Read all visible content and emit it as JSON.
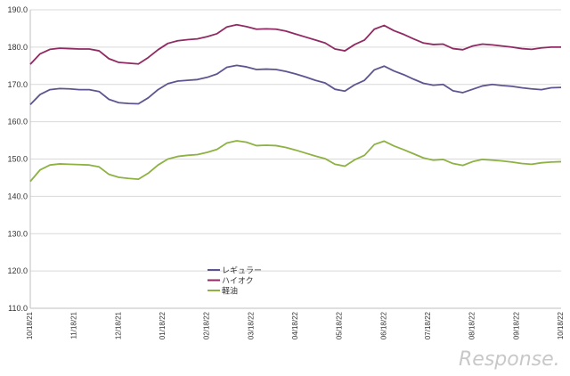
{
  "chart_data": {
    "type": "line",
    "title": "",
    "xlabel": "",
    "ylabel": "",
    "ylim": [
      110,
      190
    ],
    "yticks": [
      "110.0",
      "120.0",
      "130.0",
      "140.0",
      "150.0",
      "160.0",
      "170.0",
      "180.0",
      "190.0"
    ],
    "x_tick_labels": [
      "10/18/21",
      "11/18/21",
      "12/18/21",
      "01/18/22",
      "02/18/22",
      "03/18/22",
      "04/18/22",
      "05/18/22",
      "06/18/22",
      "07/18/22",
      "08/18/22",
      "09/18/22",
      "10/18/22"
    ],
    "grid": true,
    "legend_position": "center-left",
    "series": [
      {
        "name": "レギュラー",
        "color": "#5e5590",
        "values": [
          164.6,
          167.3,
          168.6,
          168.9,
          168.8,
          168.6,
          168.6,
          168.1,
          166.0,
          165.1,
          164.9,
          164.8,
          166.4,
          168.6,
          170.2,
          170.9,
          171.1,
          171.3,
          171.9,
          172.8,
          174.6,
          175.1,
          174.7,
          174.0,
          174.1,
          174.0,
          173.5,
          172.8,
          172.0,
          171.1,
          170.4,
          168.7,
          168.2,
          169.9,
          171.1,
          173.9,
          174.9,
          173.6,
          172.6,
          171.4,
          170.3,
          169.8,
          170.0,
          168.3,
          167.8,
          168.7,
          169.6,
          170.0,
          169.7,
          169.5,
          169.1,
          168.8,
          168.6,
          169.1,
          169.2
        ]
      },
      {
        "name": "ハイオク",
        "color": "#8f2a62",
        "values": [
          175.4,
          178.2,
          179.4,
          179.7,
          179.6,
          179.5,
          179.5,
          179.0,
          176.9,
          175.9,
          175.7,
          175.5,
          177.2,
          179.3,
          181.0,
          181.7,
          182.0,
          182.2,
          182.8,
          183.6,
          185.4,
          186.0,
          185.5,
          184.8,
          184.9,
          184.8,
          184.3,
          183.5,
          182.7,
          181.9,
          181.1,
          179.5,
          179.0,
          180.7,
          181.9,
          184.8,
          185.8,
          184.4,
          183.4,
          182.2,
          181.1,
          180.7,
          180.8,
          179.6,
          179.3,
          180.3,
          180.8,
          180.6,
          180.3,
          180.0,
          179.6,
          179.4,
          179.8,
          180.0,
          180.0
        ]
      },
      {
        "name": "軽油",
        "color": "#8db242",
        "values": [
          144.0,
          147.1,
          148.4,
          148.7,
          148.6,
          148.5,
          148.4,
          147.9,
          145.9,
          145.1,
          144.8,
          144.6,
          146.2,
          148.4,
          150.0,
          150.7,
          151.0,
          151.2,
          151.8,
          152.6,
          154.3,
          154.9,
          154.5,
          153.6,
          153.7,
          153.6,
          153.1,
          152.4,
          151.6,
          150.8,
          150.1,
          148.6,
          148.1,
          149.8,
          151.0,
          153.9,
          154.8,
          153.5,
          152.5,
          151.4,
          150.3,
          149.7,
          149.9,
          148.8,
          148.3,
          149.3,
          149.9,
          149.7,
          149.5,
          149.2,
          148.8,
          148.6,
          149.0,
          149.2,
          149.3
        ]
      }
    ]
  },
  "watermark": "Response."
}
